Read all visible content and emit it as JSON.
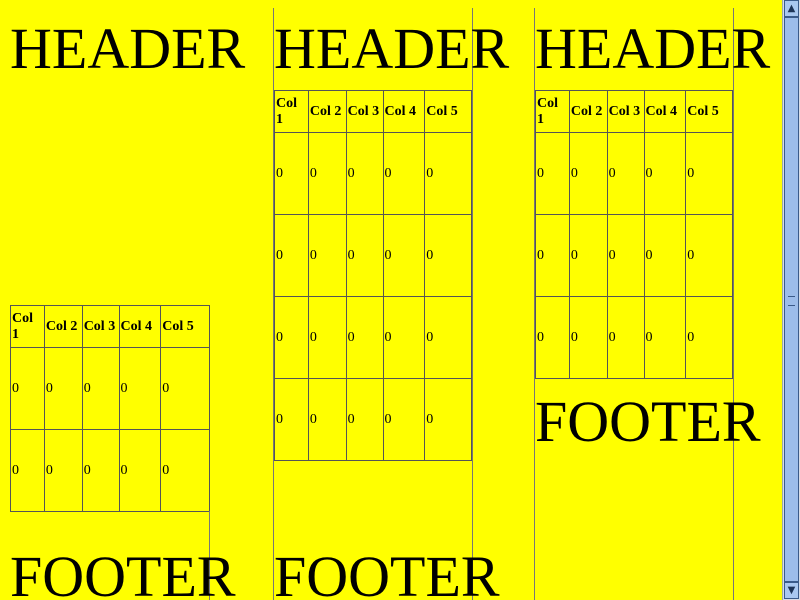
{
  "columns": [
    {
      "header": "HEADER",
      "footer": "FOOTER",
      "table": {
        "headers": [
          "Col 1",
          "Col 2",
          "Col 3",
          "Col 4",
          "Col 5"
        ],
        "rows": [
          [
            "0",
            "0",
            "0",
            "0",
            "0"
          ],
          [
            "0",
            "0",
            "0",
            "0",
            "0"
          ]
        ]
      }
    },
    {
      "header": "HEADER",
      "footer": "FOOTER",
      "table": {
        "headers": [
          "Col 1",
          "Col 2",
          "Col 3",
          "Col 4",
          "Col 5"
        ],
        "rows": [
          [
            "0",
            "0",
            "0",
            "0",
            "0"
          ],
          [
            "0",
            "0",
            "0",
            "0",
            "0"
          ],
          [
            "0",
            "0",
            "0",
            "0",
            "0"
          ],
          [
            "0",
            "0",
            "0",
            "0",
            "0"
          ]
        ]
      }
    },
    {
      "header": "HEADER",
      "footer": "FOOTER",
      "table": {
        "headers": [
          "Col 1",
          "Col 2",
          "Col 3",
          "Col 4",
          "Col 5"
        ],
        "rows": [
          [
            "0",
            "0",
            "0",
            "0",
            "0"
          ],
          [
            "0",
            "0",
            "0",
            "0",
            "0"
          ],
          [
            "0",
            "0",
            "0",
            "0",
            "0"
          ]
        ]
      }
    }
  ],
  "colors": {
    "page_background": "#ffff00",
    "scrollbar_thumb": "#9cbdea"
  },
  "scrollbar": {
    "up_icon": "arrow-up-icon",
    "down_icon": "arrow-down-icon"
  }
}
